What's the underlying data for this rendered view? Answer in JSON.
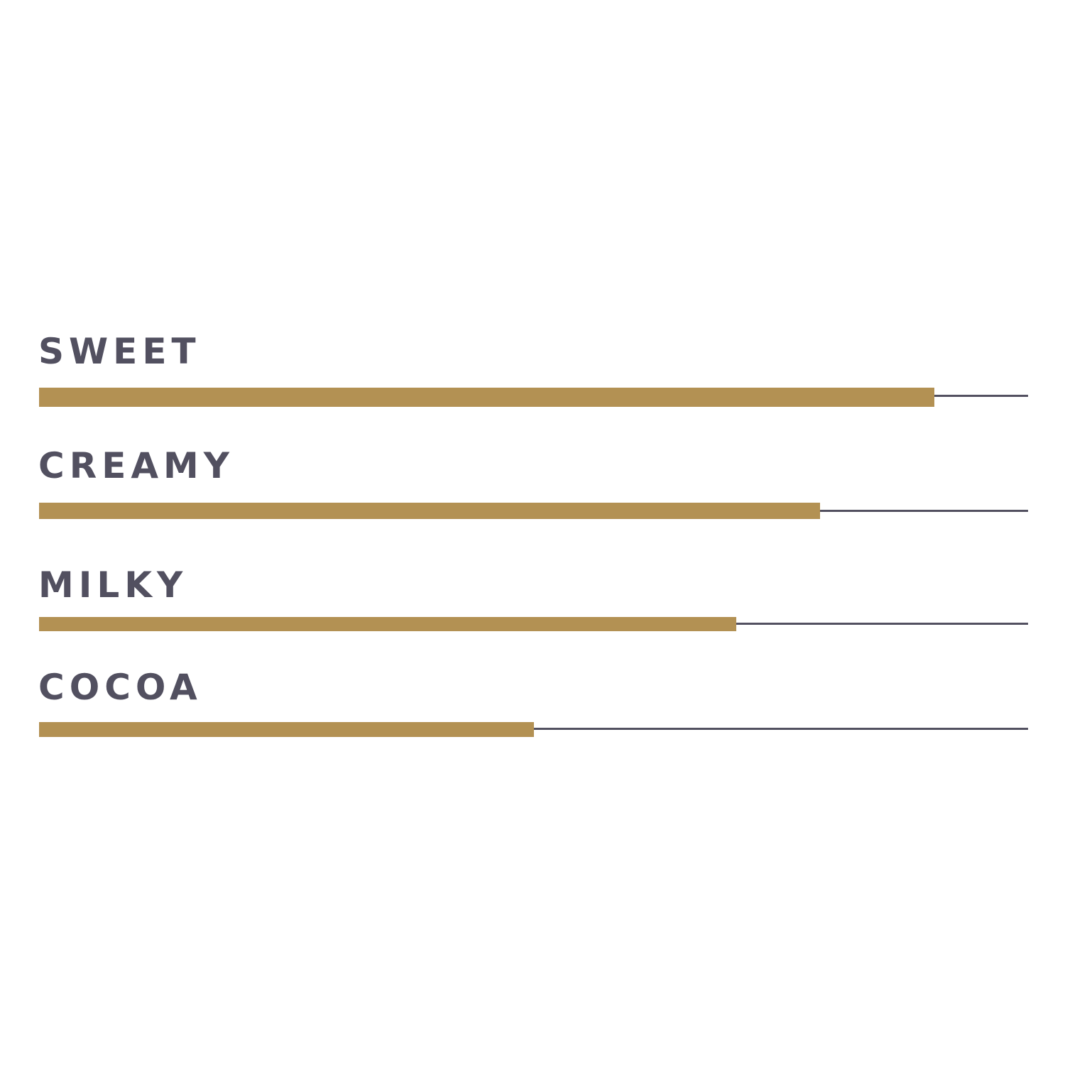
{
  "chart_data": {
    "type": "bar",
    "orientation": "horizontal",
    "categories": [
      "SWEET",
      "CREAMY",
      "MILKY",
      "COCOA"
    ],
    "values": [
      90.5,
      79,
      70.5,
      50
    ],
    "xlim": [
      0,
      100
    ],
    "grid": false,
    "colors": {
      "bar": "#b39153",
      "track": "#525060",
      "label": "#525060"
    }
  }
}
